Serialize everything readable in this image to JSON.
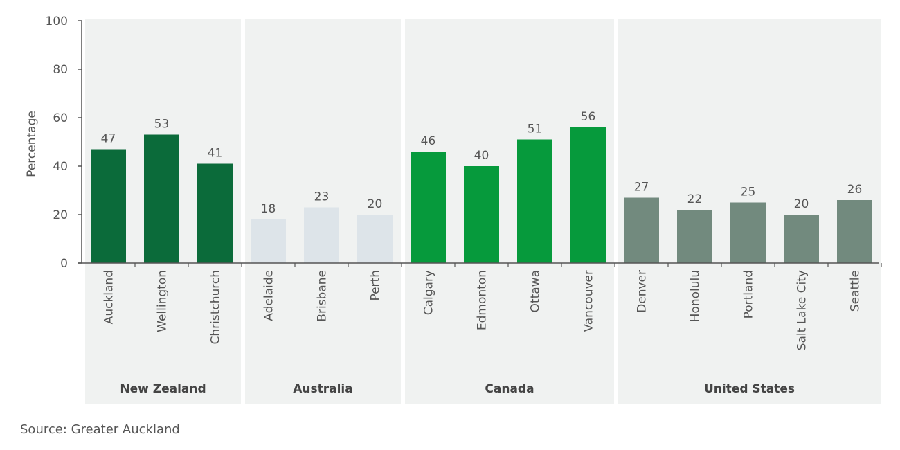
{
  "chart_data": {
    "type": "bar",
    "ylabel": "Percentage",
    "ylim": [
      0,
      100
    ],
    "yticks": [
      0,
      20,
      40,
      60,
      80,
      100
    ],
    "groups": [
      {
        "name": "New Zealand",
        "color": "#0b6b3a",
        "categories": [
          "Auckland",
          "Wellington",
          "Christchurch"
        ],
        "values": [
          47,
          53,
          41
        ]
      },
      {
        "name": "Australia",
        "color": "#dde4e9",
        "categories": [
          "Adelaide",
          "Brisbane",
          "Perth"
        ],
        "values": [
          18,
          23,
          20
        ]
      },
      {
        "name": "Canada",
        "color": "#069a3c",
        "categories": [
          "Calgary",
          "Edmonton",
          "Ottawa",
          "Vancouver"
        ],
        "values": [
          46,
          40,
          51,
          56
        ]
      },
      {
        "name": "United States",
        "color": "#728a7e",
        "categories": [
          "Denver",
          "Honolulu",
          "Portland",
          "Salt Lake City",
          "Seattle"
        ],
        "values": [
          27,
          22,
          25,
          20,
          26
        ]
      }
    ],
    "panel_color": "#f0f2f1",
    "grid": false,
    "legend": "none"
  },
  "source": "Source: Greater Auckland"
}
